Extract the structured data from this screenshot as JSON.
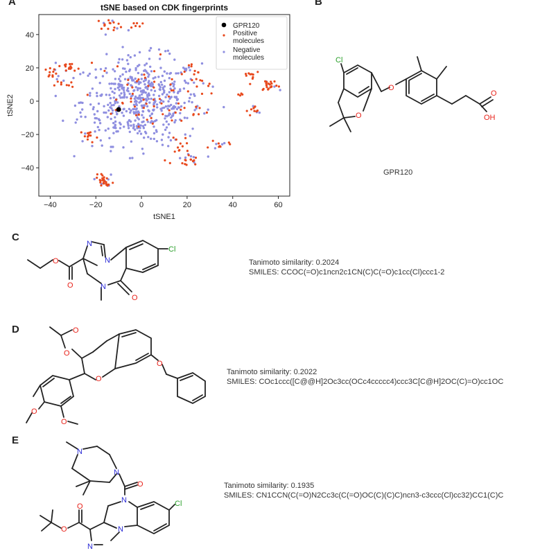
{
  "panels": {
    "A": "A",
    "B": "B",
    "C": "C",
    "D": "D",
    "E": "E"
  },
  "chart_data": {
    "type": "scatter",
    "title": "tSNE based on CDK fingerprints",
    "xlabel": "tSNE1",
    "ylabel": "tSNE2",
    "xlim": [
      -45,
      65
    ],
    "ylim": [
      -57,
      52
    ],
    "xticks": [
      -40,
      -20,
      0,
      20,
      40,
      60
    ],
    "yticks": [
      -40,
      -20,
      0,
      20,
      40
    ],
    "legend_position": "top-right",
    "grid": false,
    "series": [
      {
        "name": "GPR120",
        "color": "#000000",
        "points": [
          [
            -10,
            -5
          ]
        ]
      },
      {
        "name": "Positive\nmolecules",
        "color": "#e8491d",
        "clusters": [
          {
            "center": [
              -14,
              46
            ],
            "spread": [
              3,
              1.5
            ],
            "count": 14
          },
          {
            "center": [
              -3,
              46
            ],
            "spread": [
              1.5,
              1.5
            ],
            "count": 6
          },
          {
            "center": [
              -40,
              17
            ],
            "spread": [
              2,
              2
            ],
            "count": 10
          },
          {
            "center": [
              -32,
              19
            ],
            "spread": [
              3,
              2
            ],
            "count": 14
          },
          {
            "center": [
              -34,
              10
            ],
            "spread": [
              2,
              1.5
            ],
            "count": 8
          },
          {
            "center": [
              -23,
              -21
            ],
            "spread": [
              2,
              2
            ],
            "count": 12
          },
          {
            "center": [
              -16,
              -49
            ],
            "spread": [
              2,
              2
            ],
            "count": 18
          },
          {
            "center": [
              -17,
              -45
            ],
            "spread": [
              1.5,
              1
            ],
            "count": 6
          },
          {
            "center": [
              56,
              10
            ],
            "spread": [
              2,
              2
            ],
            "count": 20
          },
          {
            "center": [
              48,
              16
            ],
            "spread": [
              2,
              2
            ],
            "count": 10
          },
          {
            "center": [
              50,
              -6
            ],
            "spread": [
              2,
              1.5
            ],
            "count": 10
          },
          {
            "center": [
              43,
              4
            ],
            "spread": [
              1,
              1
            ],
            "count": 4
          },
          {
            "center": [
              19,
              -36
            ],
            "spread": [
              3,
              2
            ],
            "count": 14
          },
          {
            "center": [
              18,
              -27
            ],
            "spread": [
              2,
              2
            ],
            "count": 8
          },
          {
            "center": [
              34,
              -26
            ],
            "spread": [
              2,
              1.5
            ],
            "count": 8
          },
          {
            "center": [
              30,
              11
            ],
            "spread": [
              3,
              1.5
            ],
            "count": 6
          },
          {
            "center": [
              22,
              20
            ],
            "spread": [
              3,
              2
            ],
            "count": 8
          },
          {
            "center": [
              25,
              -6
            ],
            "spread": [
              2,
              2
            ],
            "count": 5
          },
          {
            "center": [
              0,
              0
            ],
            "spread": [
              13,
              12
            ],
            "count": 60
          }
        ]
      },
      {
        "name": "Negative\nmolecules",
        "color": "#8f8fe0",
        "clusters": [
          {
            "center": [
              0,
              0
            ],
            "spread": [
              13,
              13
            ],
            "count": 520
          },
          {
            "center": [
              -14,
              46
            ],
            "spread": [
              3,
              1.5
            ],
            "count": 4
          },
          {
            "center": [
              -16,
              -47
            ],
            "spread": [
              2,
              2
            ],
            "count": 5
          },
          {
            "center": [
              56,
              10
            ],
            "spread": [
              2,
              2
            ],
            "count": 4
          },
          {
            "center": [
              -35,
              14
            ],
            "spread": [
              3,
              4
            ],
            "count": 6
          },
          {
            "center": [
              19,
              -35
            ],
            "spread": [
              3,
              3
            ],
            "count": 6
          },
          {
            "center": [
              34,
              -26
            ],
            "spread": [
              2,
              2
            ],
            "count": 3
          },
          {
            "center": [
              50,
              -6
            ],
            "spread": [
              2,
              2
            ],
            "count": 3
          }
        ]
      }
    ]
  },
  "molecules": {
    "B": {
      "name": "GPR120",
      "atoms": {
        "cl": "Cl",
        "o_ether": "O",
        "o_ring": "O",
        "o_acid_carbonyl": "O",
        "oh": "OH"
      }
    },
    "C": {
      "similarity_text": "Tanimoto similarity: 0.2024",
      "smiles_text": "SMILES: CCOC(=O)c1ncn2c1CN(C)C(=O)c1cc(Cl)ccc1-2",
      "atoms": {
        "n_top": "N",
        "n_ring": "N",
        "n_amide": "N",
        "o_ester": "O",
        "o_ester_carbonyl": "O",
        "o_amide": "O",
        "cl": "Cl"
      }
    },
    "D": {
      "similarity_text": "Tanimoto similarity: 0.2022",
      "smiles_text": "SMILES: COc1ccc([C@@H]2Oc3cc(OCc4ccccc4)ccc3C[C@H]2OC(C)=O)cc1OC",
      "atoms": {
        "o_carbonyl": "O",
        "o_acetate": "O",
        "o_ring": "O",
        "o_benzyl": "O",
        "o_methoxy_1": "O",
        "o_methoxy_2": "O"
      }
    },
    "E": {
      "similarity_text": "Tanimoto similarity: 0.1935",
      "smiles_text": "SMILES: CN1CCN(C(=O)N2Cc3c(C(=O)OC(C)(C)C)ncn3-c3ccc(Cl)cc32)CC1(C)C",
      "atoms": {
        "n_methyl": "N",
        "n_piperazine": "N",
        "o_urea": "O",
        "n_diazepine": "N",
        "o_ester_carbonyl": "O",
        "o_ester": "O",
        "n_imid_bottom": "N",
        "n_imid_ring": "N",
        "cl": "Cl"
      }
    }
  }
}
